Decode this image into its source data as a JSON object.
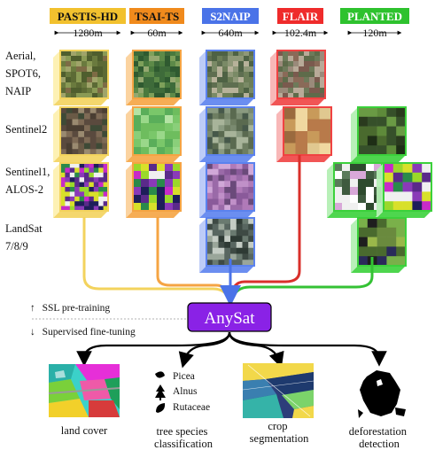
{
  "datasets": [
    {
      "name": "PASTIS-HD",
      "size": "1280m",
      "color": "#f2c12e",
      "frame": "#f3d35d",
      "face": "#fdf0b0"
    },
    {
      "name": "TSAI-TS",
      "size": "60m",
      "color": "#f08a1c",
      "frame": "#f5a443",
      "face": "#fbd19b"
    },
    {
      "name": "S2NAIP",
      "size": "640m",
      "color": "#4a73e8",
      "frame": "#5b82ee",
      "face": "#b9c9f8"
    },
    {
      "name": "FLAIR",
      "size": "102.4m",
      "color": "#ef2b2b",
      "frame": "#f04242",
      "face": "#f8b4b4"
    },
    {
      "name": "PLANTED",
      "size": "120m",
      "color": "#2ec22e",
      "frame": "#3bd13b",
      "face": "#b4efb4"
    }
  ],
  "modalities": [
    {
      "lines": [
        "Aerial,",
        "SPOT6,",
        "NAIP"
      ]
    },
    {
      "lines": [
        "Sentinel2"
      ]
    },
    {
      "lines": [
        "Sentinel1,",
        "ALOS-2"
      ]
    },
    {
      "lines": [
        "LandSat",
        "7/8/9"
      ]
    }
  ],
  "model": {
    "name": "AnySat",
    "fill": "#8a22e6"
  },
  "training": {
    "pretraining": "SSL pre-training",
    "finetuning": "Supervised fine-tuning",
    "up_arrow": "↑",
    "down_arrow": "↓"
  },
  "tasks": [
    {
      "lines": [
        "land cover"
      ]
    },
    {
      "lines": [
        "tree species",
        "classification"
      ]
    },
    {
      "lines": [
        "crop",
        "segmentation"
      ]
    },
    {
      "lines": [
        "deforestation",
        "detection"
      ]
    }
  ],
  "species": [
    "Picea",
    "Alnus",
    "Rutaceae"
  ]
}
